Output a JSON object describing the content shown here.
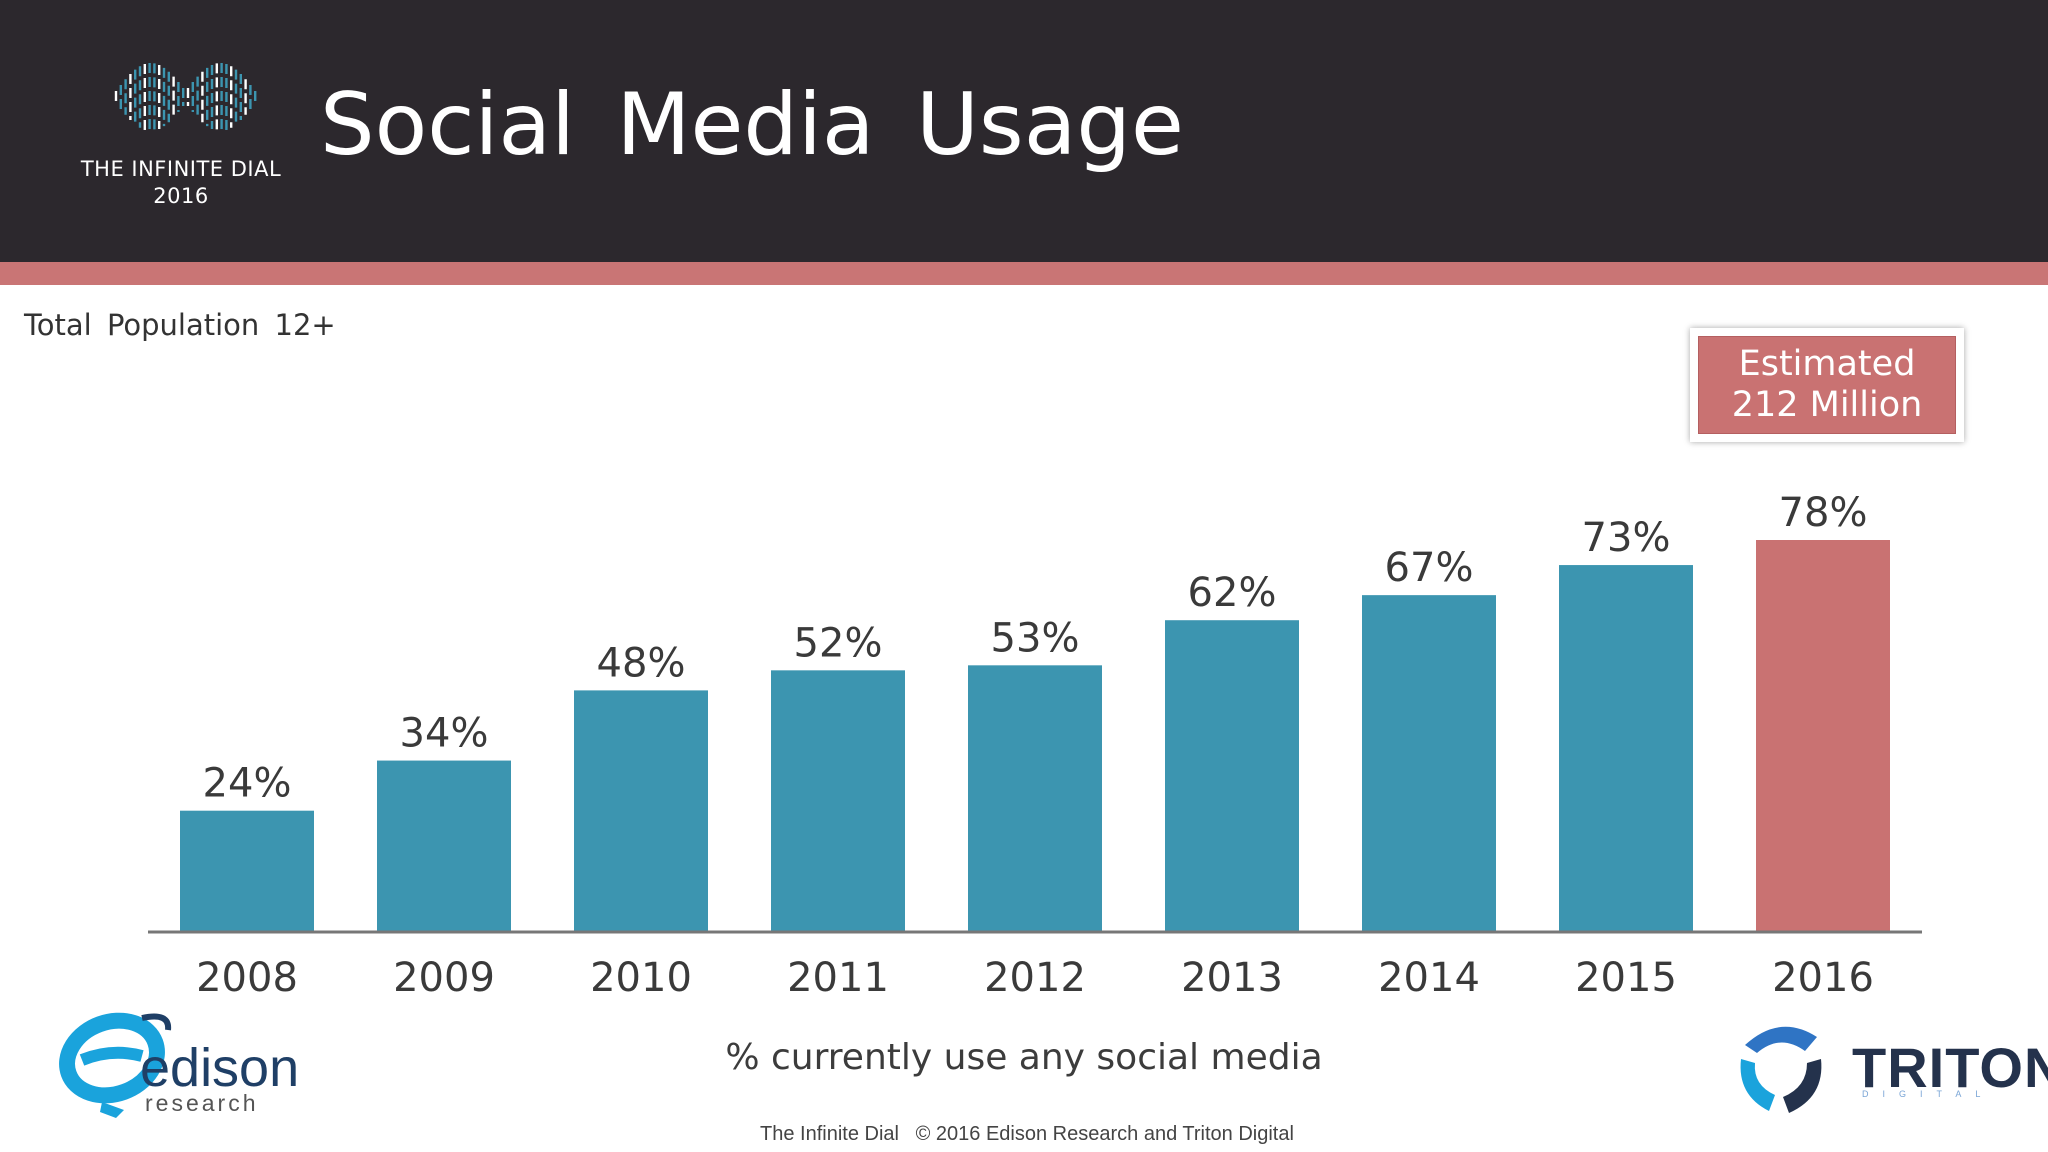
{
  "header": {
    "title": "Social Media Usage",
    "logo_name": "THE INFINITE DIAL",
    "logo_year": "2016"
  },
  "subtitle": "Total Population 12+",
  "callout": {
    "line1": "Estimated",
    "line2": "212 Million"
  },
  "footer": {
    "chart_caption": "% currently use any social media",
    "copyright": "The Infinite Dial   © 2016 Edison Research and Triton Digital"
  },
  "logos": {
    "edison_word": "edison",
    "edison_sub": "research",
    "triton_word": "TRITON",
    "triton_sub": "DIGITAL"
  },
  "colors": {
    "header_bg": "#2c282d",
    "accent": "#c97575",
    "bar": "#3c95b0",
    "bar_highlight": "#c97272",
    "axis": "#777777"
  },
  "chart_data": {
    "type": "bar",
    "title": "Social Media Usage",
    "subtitle": "Total Population 12+",
    "xlabel": "% currently use any social media",
    "ylabel": "",
    "categories": [
      "2008",
      "2009",
      "2010",
      "2011",
      "2012",
      "2013",
      "2014",
      "2015",
      "2016"
    ],
    "values": [
      24,
      34,
      48,
      52,
      53,
      62,
      67,
      73,
      78
    ],
    "value_labels": [
      "24%",
      "34%",
      "48%",
      "52%",
      "53%",
      "62%",
      "67%",
      "73%",
      "78%"
    ],
    "highlight_index": 8,
    "ylim": [
      0,
      78
    ],
    "grid": false,
    "legend": "none",
    "annotation": "Estimated 212 Million"
  }
}
